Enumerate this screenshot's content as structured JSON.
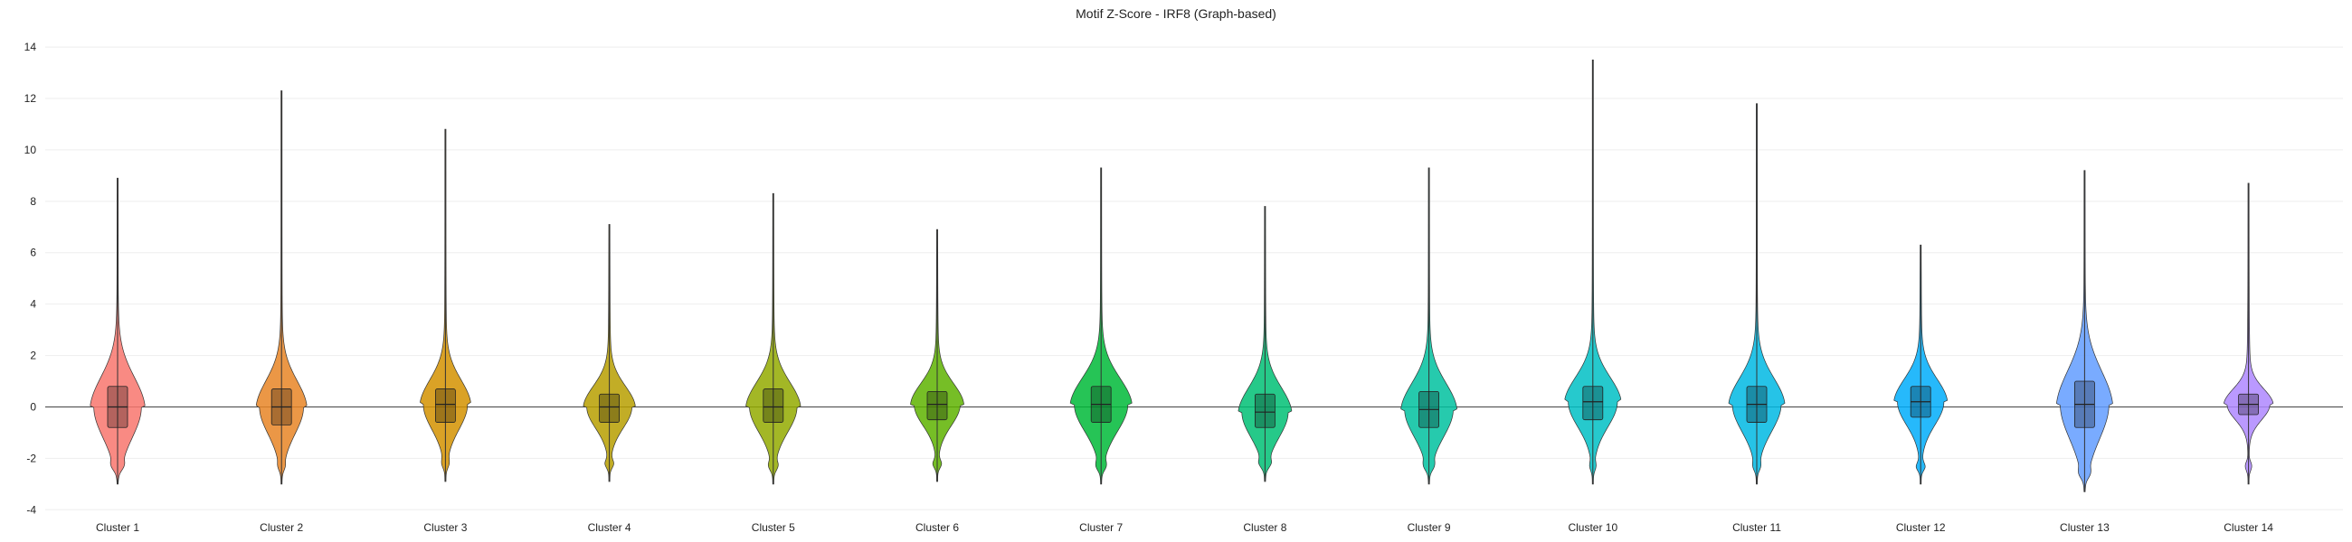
{
  "chart_data": {
    "type": "violin",
    "title": "Motif Z-Score - IRF8 (Graph-based)",
    "xlabel": "",
    "ylabel": "",
    "ylim": [
      -4.2,
      14.6
    ],
    "y_ticks": [
      -4,
      -2,
      0,
      2,
      4,
      6,
      8,
      10,
      12,
      14
    ],
    "grid": true,
    "legend": "none",
    "categories": [
      "Cluster 1",
      "Cluster 2",
      "Cluster 3",
      "Cluster 4",
      "Cluster 5",
      "Cluster 6",
      "Cluster 7",
      "Cluster 8",
      "Cluster 9",
      "Cluster 10",
      "Cluster 11",
      "Cluster 12",
      "Cluster 13",
      "Cluster 14"
    ],
    "colors": [
      "#F8766D",
      "#E88526",
      "#D39200",
      "#B79F00",
      "#93AA00",
      "#5EB300",
      "#00BA38",
      "#00BF74",
      "#00C19F",
      "#00BFC4",
      "#00B9E3",
      "#00ADFA",
      "#619CFF",
      "#AE87FF"
    ],
    "violins": [
      {
        "min": -3.0,
        "q1": -0.8,
        "median": 0.0,
        "q3": 0.8,
        "max": 8.9,
        "spread": 0.78
      },
      {
        "min": -3.0,
        "q1": -0.7,
        "median": 0.0,
        "q3": 0.7,
        "max": 12.3,
        "spread": 0.72
      },
      {
        "min": -2.9,
        "q1": -0.6,
        "median": 0.1,
        "q3": 0.7,
        "max": 10.8,
        "spread": 0.72
      },
      {
        "min": -2.9,
        "q1": -0.6,
        "median": 0.0,
        "q3": 0.5,
        "max": 7.1,
        "spread": 0.74
      },
      {
        "min": -3.0,
        "q1": -0.6,
        "median": 0.0,
        "q3": 0.7,
        "max": 8.3,
        "spread": 0.78
      },
      {
        "min": -2.9,
        "q1": -0.5,
        "median": 0.1,
        "q3": 0.6,
        "max": 6.9,
        "spread": 0.76
      },
      {
        "min": -3.0,
        "q1": -0.6,
        "median": 0.1,
        "q3": 0.8,
        "max": 9.3,
        "spread": 0.88
      },
      {
        "min": -2.9,
        "q1": -0.8,
        "median": -0.2,
        "q3": 0.5,
        "max": 7.8,
        "spread": 0.76
      },
      {
        "min": -3.0,
        "q1": -0.8,
        "median": -0.1,
        "q3": 0.6,
        "max": 9.3,
        "spread": 0.8
      },
      {
        "min": -3.0,
        "q1": -0.5,
        "median": 0.2,
        "q3": 0.8,
        "max": 13.5,
        "spread": 0.8
      },
      {
        "min": -3.0,
        "q1": -0.6,
        "median": 0.1,
        "q3": 0.8,
        "max": 11.8,
        "spread": 0.8
      },
      {
        "min": -3.0,
        "q1": -0.4,
        "median": 0.2,
        "q3": 0.8,
        "max": 6.3,
        "spread": 0.76
      },
      {
        "min": -3.3,
        "q1": -0.8,
        "median": 0.1,
        "q3": 1.0,
        "max": 9.2,
        "spread": 0.8
      },
      {
        "min": -3.0,
        "q1": -0.3,
        "median": 0.1,
        "q3": 0.5,
        "max": 8.7,
        "spread": 0.7
      }
    ]
  }
}
